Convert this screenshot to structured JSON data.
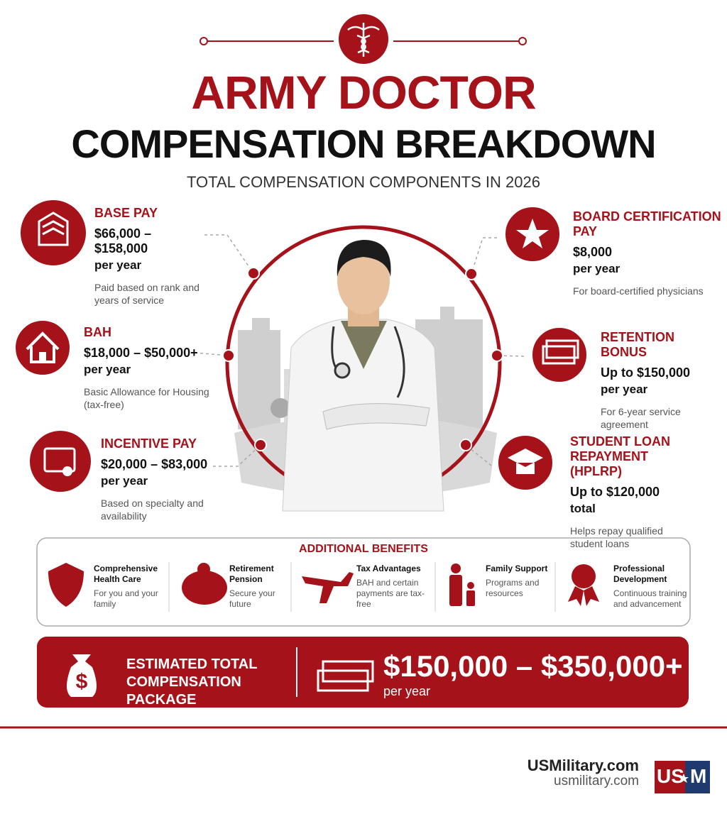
{
  "header": {
    "title_line1": "ARMY DOCTOR",
    "title_line2": "COMPENSATION BREAKDOWN",
    "subtitle": "TOTAL COMPENSATION COMPONENTS IN 2026"
  },
  "components": [
    {
      "title": "BASE PAY",
      "amount": "$66,000 – $158,000",
      "period": "per year",
      "description": "Paid based on rank and years of service"
    },
    {
      "title": "BAH",
      "amount": "$18,000 – $50,000+",
      "period": "per year",
      "description": "Basic Allowance for Housing (tax-free)"
    },
    {
      "title": "INCENTIVE PAY",
      "amount": "$20,000 – $83,000",
      "period": "per year",
      "description": "Based on specialty and availability"
    },
    {
      "title": "BOARD CERTIFICATION PAY",
      "amount": "$8,000",
      "period": "per year",
      "description": "For board-certified physicians"
    },
    {
      "title": "RETENTION BONUS",
      "amount": "Up to $150,000",
      "period": "per year",
      "description": "For 6-year service agreement"
    },
    {
      "title": "STUDENT LOAN REPAYMENT (HPLRP)",
      "amount": "Up to $120,000",
      "period": "total",
      "description": "Helps repay qualified student loans"
    }
  ],
  "benefits": {
    "title": "ADDITIONAL BENEFITS",
    "items": [
      {
        "name": "Comprehensive Health Care",
        "description": "For you and your family"
      },
      {
        "name": "Retirement Pension",
        "description": "Secure your future"
      },
      {
        "name": "Tax Advantages",
        "description": "BAH and certain payments are tax-free"
      },
      {
        "name": "Family Support",
        "description": "Programs and resources"
      },
      {
        "name": "Professional Development",
        "description": "Continuous training and advancement"
      }
    ]
  },
  "total": {
    "label": "ESTIMATED TOTAL COMPENSATION PACKAGE",
    "value": "$150,000 – $350,000+",
    "period": "per year"
  },
  "footer": {
    "brand": "USMilitary.com",
    "url": "usmilitary.com",
    "logo_left": "US",
    "logo_right": "M"
  }
}
